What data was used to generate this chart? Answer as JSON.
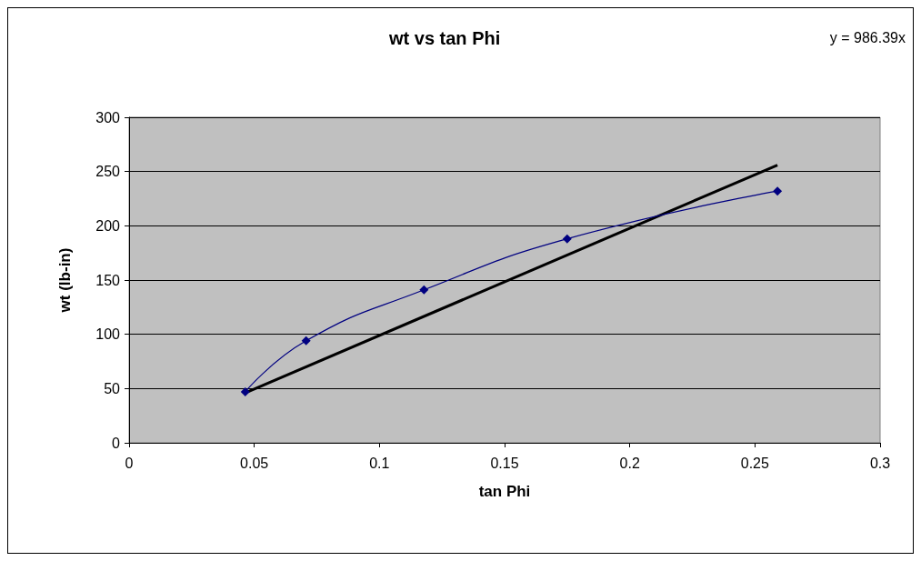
{
  "chart_data": {
    "type": "line",
    "title": "wt vs tan Phi",
    "xlabel": "tan Phi",
    "ylabel": "wt (lb-in)",
    "annotations": [
      "y = 986.39x"
    ],
    "x": [
      0.0464,
      0.0707,
      0.1178,
      0.175,
      0.259
    ],
    "series": [
      {
        "color": "#000080",
        "values": [
          47,
          94,
          141,
          188,
          232
        ],
        "marker": "diamond"
      },
      {
        "type": "line",
        "color": "#000000",
        "x": [
          0.0464,
          0.259
        ],
        "values": [
          46,
          256
        ],
        "marker": "none"
      }
    ],
    "xlim": [
      0,
      0.3
    ],
    "xticks": [
      0,
      0.05,
      0.1,
      0.15,
      0.2,
      0.25,
      0.3
    ],
    "ylim": [
      0,
      300
    ],
    "yticks": [
      0,
      50,
      100,
      150,
      200,
      250,
      300
    ],
    "grid": "y"
  }
}
